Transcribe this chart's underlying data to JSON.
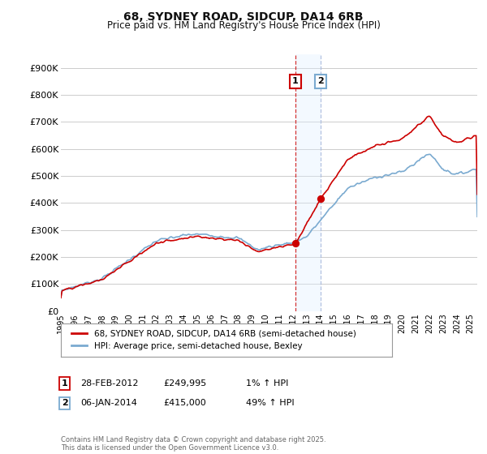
{
  "title": "68, SYDNEY ROAD, SIDCUP, DA14 6RB",
  "subtitle": "Price paid vs. HM Land Registry's House Price Index (HPI)",
  "ylabel_ticks": [
    "£0",
    "£100K",
    "£200K",
    "£300K",
    "£400K",
    "£500K",
    "£600K",
    "£700K",
    "£800K",
    "£900K"
  ],
  "ytick_values": [
    0,
    100000,
    200000,
    300000,
    400000,
    500000,
    600000,
    700000,
    800000,
    900000
  ],
  "ylim": [
    0,
    950000
  ],
  "xlim_start": 1995.0,
  "xlim_end": 2025.5,
  "sale1_date": 2012.17,
  "sale1_price": 249995,
  "sale2_date": 2014.02,
  "sale2_price": 415000,
  "line1_color": "#cc0000",
  "line2_color": "#7aaad0",
  "marker_color": "#cc0000",
  "vline1_color": "#cc0000",
  "vline2_color": "#aabbdd",
  "shade_color": "#ddeeff",
  "background_color": "#ffffff",
  "grid_color": "#cccccc",
  "legend_line1": "68, SYDNEY ROAD, SIDCUP, DA14 6RB (semi-detached house)",
  "legend_line2": "HPI: Average price, semi-detached house, Bexley",
  "footnote": "Contains HM Land Registry data © Crown copyright and database right 2025.\nThis data is licensed under the Open Government Licence v3.0.",
  "xtick_years": [
    1995,
    1996,
    1997,
    1998,
    1999,
    2000,
    2001,
    2002,
    2003,
    2004,
    2005,
    2006,
    2007,
    2008,
    2009,
    2010,
    2011,
    2012,
    2013,
    2014,
    2015,
    2016,
    2017,
    2018,
    2019,
    2020,
    2021,
    2022,
    2023,
    2024,
    2025
  ]
}
